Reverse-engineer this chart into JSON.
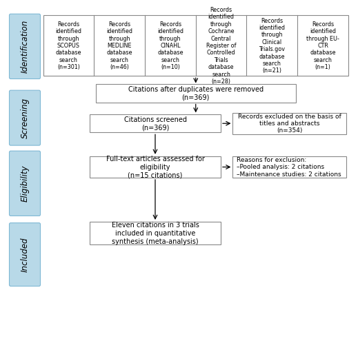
{
  "identification_boxes": [
    "Records\nidentified\nthrough\nSCOPUS\ndatabase\nsearch\n(n=301)",
    "Records\nidentified\nthrough\nMEDLINE\ndatabase\nsearch\n(n=46)",
    "Records\nidentified\nthrough\nCINAHL\ndatabase\nsearch\n(n=10)",
    "Records\nidentified\nthrough\nCochrane\nCentral\nRegister of\nControlled\nTrials\ndatabase\nsearch\n(n=28)",
    "Records\nidentified\nthrough\nClinical\nTrials.gov\ndatabase\nsearch\n(n=21)",
    "Records\nidentified\nthrough EU-\nCTR\ndatabase\nsearch\n(n=1)"
  ],
  "stage_labels": [
    "Identification",
    "Screening",
    "Eligibility",
    "Included"
  ],
  "stage_bg": "#b8d9e8",
  "box_bg": "#ffffff",
  "box_border": "#888888",
  "stage_border": "#7fb8d4",
  "main_flow": [
    "Citations after duplicates were removed\n(n=369)",
    "Citations screened\n(n=369)",
    "Full-text articles assessed for\neligibility\n(n=15 citations)",
    "Eleven citations in 3 trials\nincluded in quantitative\nsynthesis (meta-analysis)"
  ],
  "side_boxes": [
    "Records excluded on the basis of\ntitles and abstracts\n(n=354)",
    "Reasons for exclusion:\n–Pooled analysis: 2 citations\n–Maintenance studies: 2 citations"
  ],
  "id_font_size": 5.8,
  "main_font_size": 7.0,
  "side_font_size": 6.5,
  "label_font_size": 8.5
}
